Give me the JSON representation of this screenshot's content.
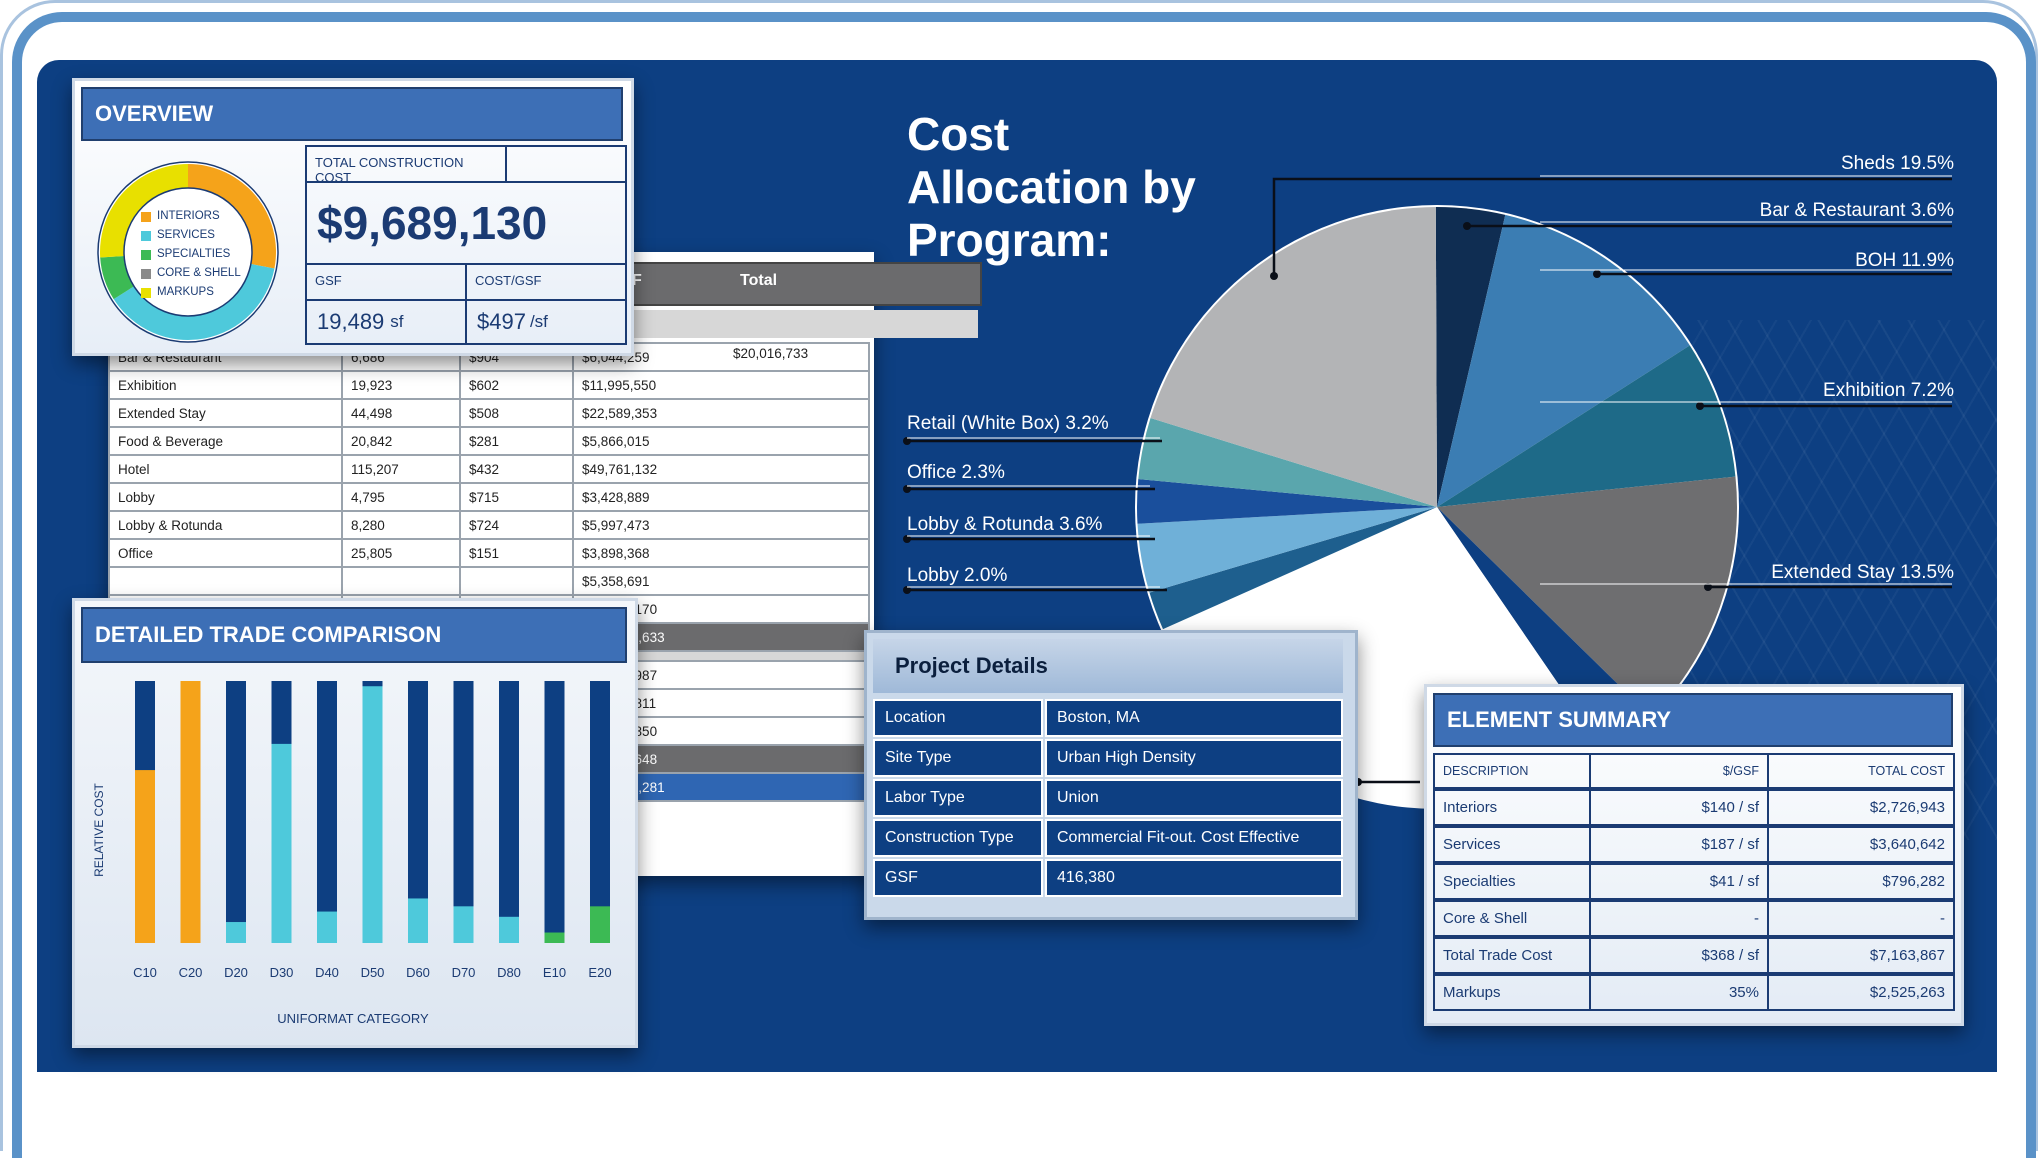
{
  "overview": {
    "title": "OVERVIEW",
    "total_label": "TOTAL CONSTRUCTION COST",
    "total_value": "$9,689,130",
    "gsf_label": "GSF",
    "costgsf_label": "COST/GSF",
    "gsf_value": "19,489",
    "gsf_unit": "sf",
    "costgsf_value": "$497",
    "costgsf_unit": "/sf",
    "legend": [
      "INTERIORS",
      "SERVICES",
      "SPECIALTIES",
      "CORE & SHELL",
      "MARKUPS"
    ],
    "legend_colors": [
      "#f5a31a",
      "#4ec9db",
      "#3cba54",
      "#8a8a8a",
      "#e8e000"
    ],
    "donut_shares": [
      0.28,
      0.38,
      0.08,
      0.0,
      0.26
    ]
  },
  "program_table": {
    "header_partial": "F",
    "header_total": "Total",
    "rows": [
      [
        "Bar & Restaurant",
        "6,686",
        "$904",
        "$6,044,259"
      ],
      [
        "Exhibition",
        "19,923",
        "$602",
        "$11,995,550"
      ],
      [
        "Extended Stay",
        "44,498",
        "$508",
        "$22,589,353"
      ],
      [
        "Food & Beverage",
        "20,842",
        "$281",
        "$5,866,015"
      ],
      [
        "Hotel",
        "115,207",
        "$432",
        "$49,761,132"
      ],
      [
        "Lobby",
        "4,795",
        "$715",
        "$3,428,889"
      ],
      [
        "Lobby & Rotunda",
        "8,280",
        "$724",
        "$5,997,473"
      ],
      [
        "Office",
        "25,805",
        "$151",
        "$3,898,368"
      ]
    ],
    "partial_top_total": "$20,016,733",
    "lower_totals": [
      "$5,358,691",
      "$32,718,170"
    ],
    "subtotal1": "$167,674,633",
    "lower2": [
      "$19,204,987",
      "$33,981,811",
      "$23,032,850"
    ],
    "subtotal2": "$76,219,648",
    "grand_total": "$243,894,281"
  },
  "trade": {
    "title": "DETAILED TRADE COMPARISON",
    "ylabel": "RELATIVE COST",
    "xlabel": "UNIFORMAT CATEGORY"
  },
  "chart_data": [
    {
      "type": "bar",
      "title": "DETAILED TRADE COMPARISON",
      "xlabel": "UNIFORMAT CATEGORY",
      "ylabel": "RELATIVE COST",
      "categories": [
        "C10",
        "C20",
        "D20",
        "D30",
        "D40",
        "D50",
        "D60",
        "D70",
        "D80",
        "E10",
        "E20"
      ],
      "values": [
        0.66,
        1.0,
        0.08,
        0.76,
        0.12,
        0.98,
        0.17,
        0.14,
        0.1,
        0.04,
        0.14
      ],
      "colors": [
        "#f5a31a",
        "#f5a31a",
        "#4ec9db",
        "#4ec9db",
        "#4ec9db",
        "#4ec9db",
        "#4ec9db",
        "#4ec9db",
        "#4ec9db",
        "#3cba54",
        "#3cba54"
      ]
    },
    {
      "type": "pie",
      "title": "Cost Allocation by Program:",
      "slices": [
        {
          "name": "Bar & Restaurant",
          "value": 3.6,
          "color": "#0f2d52"
        },
        {
          "name": "BOH",
          "value": 11.9,
          "color": "#3b7db3"
        },
        {
          "name": "Exhibition",
          "value": 7.2,
          "color": "#1e6a88"
        },
        {
          "name": "Extended Stay",
          "value": 13.5,
          "color": "#6e6e70"
        },
        {
          "name": "Food & Beverage",
          "value": 3.0,
          "color": "#0d3f82"
        },
        {
          "name": "Hotel",
          "value": 27.0,
          "color": "#ffffff"
        },
        {
          "name": "Lobby",
          "value": 2.0,
          "color": "#1e5f8e"
        },
        {
          "name": "Lobby & Rotunda",
          "value": 3.6,
          "color": "#6fb0d8"
        },
        {
          "name": "Office",
          "value": 2.3,
          "color": "#1a4f9c"
        },
        {
          "name": "Retail (White Box)",
          "value": 3.2,
          "color": "#5aa6ad"
        },
        {
          "name": "Sheds",
          "value": 19.5,
          "color": "#b3b4b6"
        }
      ]
    }
  ],
  "pie": {
    "title": "Cost Allocation by Program:",
    "labels": {
      "sheds": "Sheds  19.5%",
      "bar": "Bar & Restaurant  3.6%",
      "boh": "BOH  11.9%",
      "exhibition": "Exhibition  7.2%",
      "extended": "Extended Stay  13.5%",
      "retail": "Retail (White Box)  3.2%",
      "office": "Office  2.3%",
      "rotunda": "Lobby & Rotunda  3.6%",
      "lobby": "Lobby  2.0%"
    }
  },
  "project": {
    "title": "Project Details",
    "rows": [
      [
        "Location",
        "Boston, MA"
      ],
      [
        "Site Type",
        "Urban High Density"
      ],
      [
        "Labor Type",
        "Union"
      ],
      [
        "Construction Type",
        "Commercial Fit-out. Cost Effective"
      ],
      [
        "GSF",
        "416,380"
      ]
    ]
  },
  "element": {
    "title": "ELEMENT SUMMARY",
    "headers": [
      "DESCRIPTION",
      "$/GSF",
      "TOTAL COST"
    ],
    "rows": [
      [
        "Interiors",
        "$140 / sf",
        "$2,726,943"
      ],
      [
        "Services",
        "$187 / sf",
        "$3,640,642"
      ],
      [
        "Specialties",
        "$41 / sf",
        "$796,282"
      ],
      [
        "Core & Shell",
        "-",
        "-"
      ],
      [
        "Total Trade Cost",
        "$368 / sf",
        "$7,163,867"
      ],
      [
        "Markups",
        "35%",
        "$2,525,263"
      ]
    ]
  }
}
